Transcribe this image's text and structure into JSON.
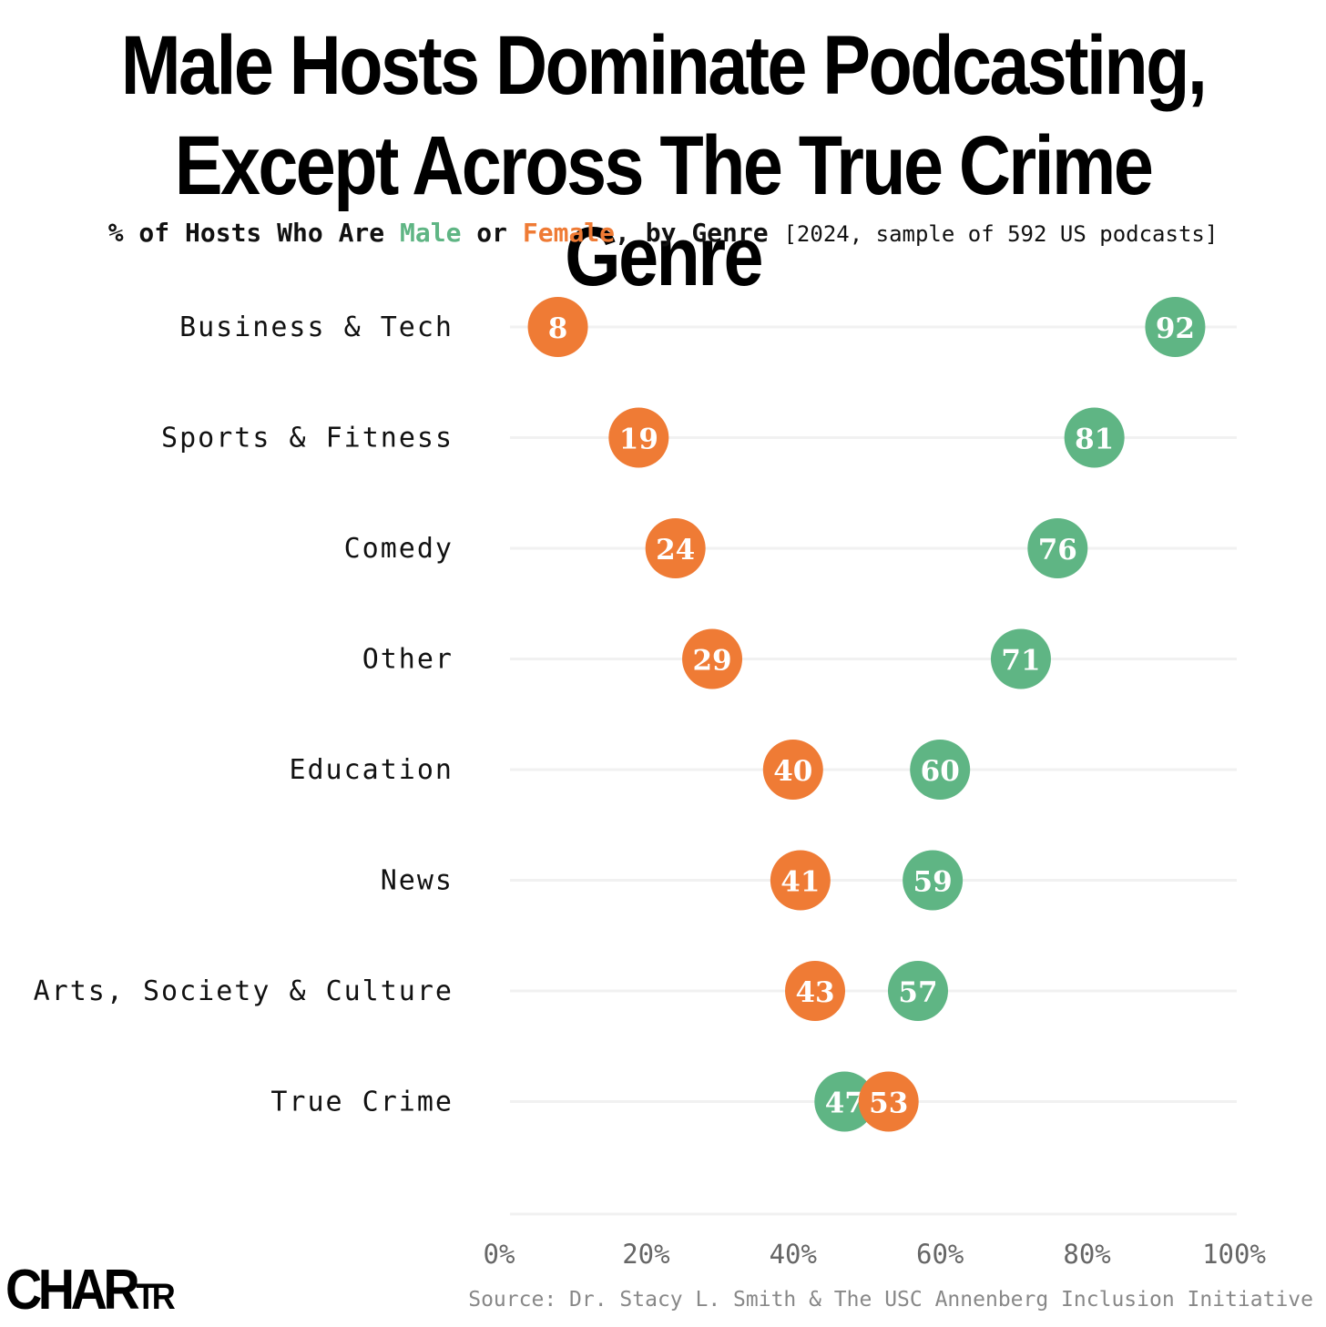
{
  "title_line1": "Male Hosts Dominate Podcasting,",
  "title_line2": "Except Across The True Crime Genre",
  "subtitle": {
    "prefix": "% of Hosts Who Are ",
    "male_word": "Male",
    "middle": " or ",
    "female_word": "Female",
    "suffix": ", by Genre ",
    "note": "[2024, sample of 592 US podcasts]"
  },
  "colors": {
    "male": "#5fb584",
    "female": "#ef7b35"
  },
  "chart_data": {
    "type": "dot",
    "categories": [
      "Business & Tech",
      "Sports & Fitness",
      "Comedy",
      "Other",
      "Education",
      "News",
      "Arts, Society & Culture",
      "True Crime"
    ],
    "series": [
      {
        "name": "Male",
        "color": "#5fb584",
        "values": [
          92,
          81,
          76,
          71,
          60,
          59,
          57,
          47
        ]
      },
      {
        "name": "Female",
        "color": "#ef7b35",
        "values": [
          8,
          19,
          24,
          29,
          40,
          41,
          43,
          53
        ]
      }
    ],
    "x_ticks": [
      "0%",
      "20%",
      "40%",
      "60%",
      "80%",
      "100%"
    ],
    "xlim": [
      0,
      100
    ],
    "grid": true
  },
  "source": "Source: Dr. Stacy L. Smith & The USC Annenberg Inclusion Initiative",
  "logo": {
    "main": "CHAR",
    "small": "TR"
  }
}
